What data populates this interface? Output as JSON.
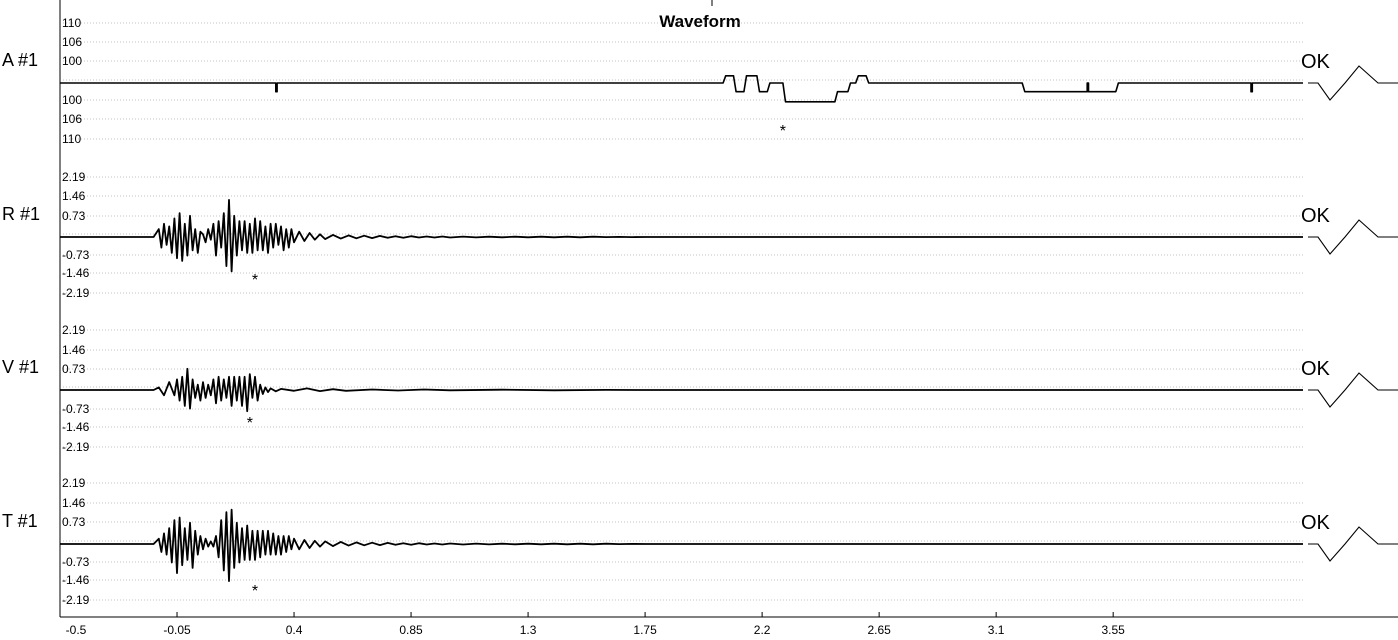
{
  "chart_data": {
    "type": "line",
    "title": "Waveform",
    "xlabel": "",
    "ylabel": "",
    "grid": true,
    "xlim": [
      -0.5,
      4.28
    ],
    "x_ticks": [
      "-0.5",
      "-0.05",
      "0.4",
      "0.85",
      "1.3",
      "1.75",
      "2.2",
      "2.65",
      "3.1",
      "3.55"
    ],
    "status_label": "OK",
    "channels": [
      {
        "name": "A #1",
        "y_ticks": [
          "110",
          "106",
          "100",
          "100",
          "106",
          "110"
        ],
        "series": [
          {
            "name": "A #1",
            "x": [
              -0.5,
              0.33,
              0.33,
              0.335,
              0.335,
              2.05,
              2.06,
              2.09,
              2.1,
              2.13,
              2.14,
              2.18,
              2.19,
              2.22,
              2.23,
              2.28,
              2.29,
              2.48,
              2.49,
              2.53,
              2.54,
              2.56,
              2.57,
              2.6,
              2.61,
              3.2,
              3.21,
              3.45,
              3.45,
              3.455,
              3.455,
              3.56,
              3.57,
              4.08,
              4.08,
              4.085,
              4.085,
              4.28
            ],
            "y": [
              0,
              0,
              -6,
              -6,
              0,
              0,
              5,
              5,
              -6,
              -6,
              5,
              5,
              -6,
              -6,
              0,
              0,
              -13,
              -13,
              -6,
              -6,
              0,
              0,
              5,
              5,
              0,
              0,
              -6,
              -6,
              0,
              0,
              -6,
              -6,
              0,
              0,
              -6,
              -6,
              0,
              0
            ]
          }
        ],
        "marker": {
          "x": 2.28,
          "label": "*"
        }
      },
      {
        "name": "R #1",
        "y_ticks": [
          "2.19",
          "1.46",
          "0.73",
          "-0.73",
          "-1.46",
          "-2.19"
        ],
        "series": [
          {
            "name": "R #1",
            "x": [
              -0.5,
              -0.14,
              -0.12,
              -0.11,
              -0.1,
              -0.09,
              -0.08,
              -0.07,
              -0.06,
              -0.05,
              -0.04,
              -0.03,
              -0.02,
              -0.01,
              0,
              0.01,
              0.02,
              0.03,
              0.04,
              0.05,
              0.06,
              0.07,
              0.08,
              0.09,
              0.1,
              0.11,
              0.12,
              0.13,
              0.14,
              0.15,
              0.16,
              0.17,
              0.18,
              0.19,
              0.2,
              0.21,
              0.22,
              0.23,
              0.24,
              0.25,
              0.26,
              0.27,
              0.28,
              0.29,
              0.3,
              0.31,
              0.32,
              0.33,
              0.34,
              0.35,
              0.36,
              0.37,
              0.38,
              0.39,
              0.4,
              0.42,
              0.44,
              0.46,
              0.48,
              0.5,
              0.52,
              0.55,
              0.58,
              0.61,
              0.64,
              0.67,
              0.7,
              0.73,
              0.76,
              0.79,
              0.82,
              0.85,
              0.88,
              0.91,
              0.94,
              0.97,
              1.0,
              1.05,
              1.1,
              1.15,
              1.2,
              1.25,
              1.3,
              1.35,
              1.4,
              1.45,
              1.5,
              1.55,
              1.6,
              1.65,
              1.7,
              1.75,
              4.28
            ],
            "y": [
              0,
              0,
              0.3,
              -0.4,
              0.5,
              -0.3,
              0.4,
              -0.6,
              0.7,
              -0.8,
              0.9,
              -0.9,
              0.5,
              -0.7,
              0.8,
              -0.5,
              0.3,
              -0.6,
              0.2,
              0.1,
              -0.2,
              0.3,
              -0.1,
              0.5,
              -0.7,
              0.6,
              -0.4,
              0.9,
              -1.1,
              1.4,
              -1.3,
              0.8,
              -0.7,
              0.6,
              -0.5,
              0.6,
              -0.6,
              0.5,
              -0.6,
              0.7,
              -0.5,
              0.6,
              -0.5,
              0.4,
              -0.6,
              0.5,
              -0.4,
              0.5,
              -0.3,
              0.4,
              -0.5,
              0.3,
              -0.4,
              0.3,
              -0.2,
              0.2,
              -0.15,
              0.15,
              -0.1,
              0.1,
              -0.08,
              0.08,
              -0.06,
              0.06,
              -0.05,
              0.05,
              -0.04,
              0.04,
              -0.03,
              0.03,
              -0.03,
              0.03,
              -0.02,
              0.02,
              -0.02,
              0.02,
              -0.02,
              0.015,
              -0.015,
              0.01,
              -0.01,
              0.01,
              -0.01,
              0.01,
              -0.01,
              0.01,
              -0.01,
              0.01,
              -0.005,
              0.005,
              -0.005,
              0,
              0
            ]
          }
        ],
        "marker": {
          "x": 0.25,
          "label": "*"
        }
      },
      {
        "name": "V #1",
        "y_ticks": [
          "2.19",
          "1.46",
          "0.73",
          "-0.73",
          "-1.46",
          "-2.19"
        ],
        "series": [
          {
            "name": "V #1",
            "x": [
              -0.5,
              -0.14,
              -0.12,
              -0.1,
              -0.08,
              -0.06,
              -0.05,
              -0.04,
              -0.03,
              -0.02,
              -0.01,
              0,
              0.01,
              0.02,
              0.03,
              0.04,
              0.05,
              0.06,
              0.07,
              0.08,
              0.09,
              0.1,
              0.11,
              0.12,
              0.13,
              0.14,
              0.15,
              0.16,
              0.17,
              0.18,
              0.19,
              0.2,
              0.21,
              0.22,
              0.23,
              0.24,
              0.25,
              0.26,
              0.27,
              0.28,
              0.29,
              0.3,
              0.31,
              0.33,
              0.35,
              0.4,
              0.45,
              0.5,
              0.55,
              0.6,
              0.7,
              0.8,
              0.9,
              1.0,
              1.2,
              1.4,
              1.6,
              1.75,
              4.28
            ],
            "y": [
              0,
              0,
              0.1,
              -0.2,
              0.3,
              -0.2,
              0.4,
              -0.4,
              0.5,
              -0.6,
              0.8,
              -0.7,
              0.4,
              -0.3,
              0.2,
              -0.4,
              0.3,
              -0.3,
              0.2,
              -0.2,
              0.4,
              -0.5,
              0.5,
              -0.4,
              0.4,
              -0.3,
              0.5,
              -0.6,
              0.5,
              -0.4,
              0.5,
              -0.6,
              0.5,
              -0.8,
              0.6,
              -0.3,
              0.5,
              -0.4,
              0.2,
              -0.15,
              0.1,
              -0.08,
              0.06,
              -0.05,
              0.04,
              -0.03,
              0.06,
              -0.04,
              0.03,
              -0.03,
              0.02,
              -0.02,
              0.02,
              -0.01,
              0.01,
              -0.01,
              0.005,
              0,
              0
            ]
          }
        ],
        "marker": {
          "x": 0.23,
          "label": "*"
        }
      },
      {
        "name": "T #1",
        "y_ticks": [
          "2.19",
          "1.46",
          "0.73",
          "-0.73",
          "-1.46",
          "-2.19"
        ],
        "series": [
          {
            "name": "T #1",
            "x": [
              -0.5,
              -0.14,
              -0.12,
              -0.11,
              -0.1,
              -0.09,
              -0.08,
              -0.07,
              -0.06,
              -0.05,
              -0.04,
              -0.03,
              -0.02,
              -0.01,
              0,
              0.01,
              0.02,
              0.03,
              0.04,
              0.05,
              0.06,
              0.07,
              0.08,
              0.09,
              0.1,
              0.11,
              0.12,
              0.13,
              0.14,
              0.15,
              0.16,
              0.17,
              0.18,
              0.19,
              0.2,
              0.21,
              0.22,
              0.23,
              0.24,
              0.25,
              0.26,
              0.27,
              0.28,
              0.29,
              0.3,
              0.31,
              0.32,
              0.33,
              0.34,
              0.35,
              0.36,
              0.37,
              0.38,
              0.39,
              0.4,
              0.42,
              0.44,
              0.46,
              0.48,
              0.5,
              0.52,
              0.55,
              0.58,
              0.61,
              0.64,
              0.67,
              0.7,
              0.73,
              0.76,
              0.79,
              0.82,
              0.85,
              0.88,
              0.91,
              0.94,
              0.97,
              1.0,
              1.05,
              1.1,
              1.15,
              1.2,
              1.25,
              1.3,
              1.35,
              1.4,
              1.45,
              1.5,
              1.55,
              1.6,
              1.65,
              1.7,
              1.75,
              4.28
            ],
            "y": [
              0,
              0,
              0.2,
              -0.3,
              0.4,
              -0.4,
              0.6,
              -0.7,
              0.9,
              -1.1,
              1.0,
              -0.8,
              0.6,
              -0.6,
              0.8,
              -0.9,
              0.5,
              -0.4,
              0.3,
              -0.2,
              0.2,
              -0.1,
              0.1,
              -0.1,
              0.3,
              -0.5,
              0.9,
              -1.0,
              1.2,
              -1.4,
              1.3,
              -0.9,
              0.8,
              -0.7,
              0.6,
              -0.6,
              0.7,
              -0.6,
              0.5,
              -0.6,
              0.5,
              -0.5,
              0.5,
              -0.4,
              0.5,
              -0.4,
              0.4,
              -0.4,
              0.3,
              -0.4,
              0.3,
              -0.3,
              0.3,
              -0.2,
              0.2,
              -0.2,
              0.15,
              -0.15,
              0.12,
              -0.1,
              0.1,
              -0.08,
              0.08,
              -0.06,
              0.06,
              -0.05,
              0.05,
              -0.04,
              0.04,
              -0.03,
              0.03,
              -0.03,
              0.03,
              -0.02,
              0.02,
              -0.02,
              0.02,
              -0.02,
              0.015,
              -0.015,
              0.01,
              -0.01,
              0.01,
              -0.01,
              0.01,
              -0.01,
              0.01,
              -0.01,
              0.01,
              -0.005,
              0.005,
              0,
              0
            ]
          }
        ],
        "marker": {
          "x": 0.25,
          "label": "*"
        }
      }
    ]
  },
  "colors": {
    "trace": "#000000",
    "grid": "#888888",
    "background": "#ffffff"
  }
}
